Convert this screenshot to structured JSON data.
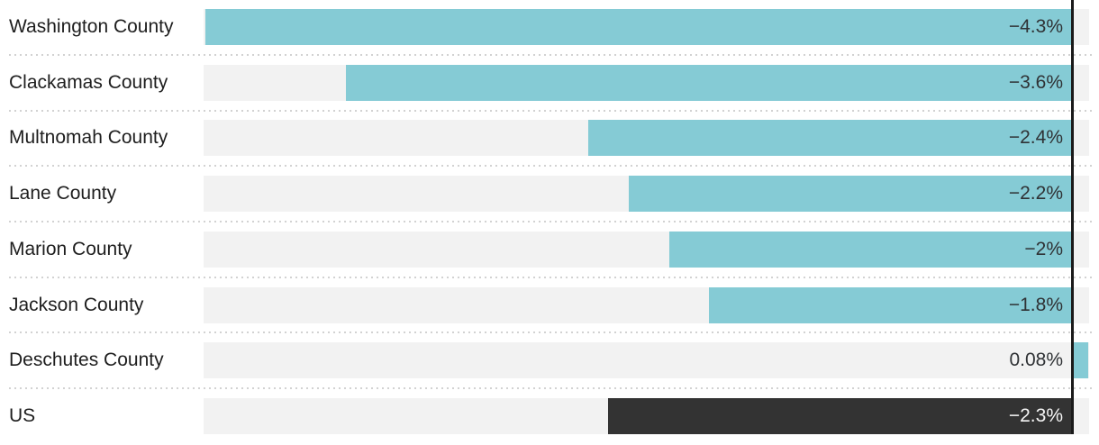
{
  "chart_data": {
    "type": "bar",
    "orientation": "horizontal",
    "unit": "%",
    "axis": {
      "xlim": [
        -4.3,
        0.09
      ],
      "zero_line": true,
      "grid": false
    },
    "legend": "none",
    "title": "",
    "rows": [
      {
        "label": "Washington County",
        "value": -4.3,
        "value_label": "−4.3%",
        "bar_color": "#85cbd5",
        "value_color": "#2f3235"
      },
      {
        "label": "Clackamas County",
        "value": -3.6,
        "value_label": "−3.6%",
        "bar_color": "#85cbd5",
        "value_color": "#2f3235"
      },
      {
        "label": "Multnomah County",
        "value": -2.4,
        "value_label": "−2.4%",
        "bar_color": "#85cbd5",
        "value_color": "#2f3235"
      },
      {
        "label": "Lane County",
        "value": -2.2,
        "value_label": "−2.2%",
        "bar_color": "#85cbd5",
        "value_color": "#2f3235"
      },
      {
        "label": "Marion County",
        "value": -2.0,
        "value_label": "−2%",
        "bar_color": "#85cbd5",
        "value_color": "#2f3235"
      },
      {
        "label": "Jackson County",
        "value": -1.8,
        "value_label": "−1.8%",
        "bar_color": "#85cbd5",
        "value_color": "#2f3235"
      },
      {
        "label": "Deschutes County",
        "value": 0.08,
        "value_label": "0.08%",
        "bar_color": "#85cbd5",
        "value_color": "#2f3235"
      },
      {
        "label": "US",
        "value": -2.3,
        "value_label": "−2.3%",
        "bar_color": "#333333",
        "value_color": "#f5f5f5"
      }
    ]
  },
  "colors": {
    "bar_teal": "#85cbd5",
    "bar_dark": "#333333",
    "track": "#f2f2f2",
    "axis_line": "#1a1a1a",
    "separator_dot": "#d2d2d2",
    "label_text": "#1e1e1e",
    "background": "#ffffff"
  }
}
